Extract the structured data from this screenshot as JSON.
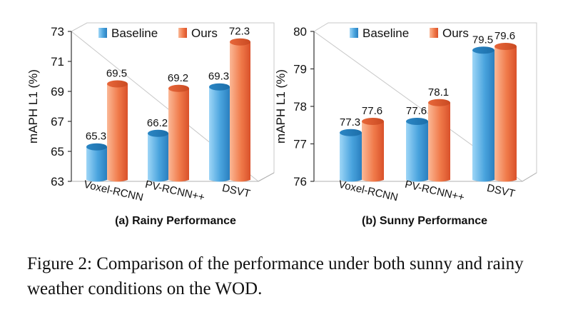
{
  "figure": {
    "caption": "Figure 2: Comparison of the performance under both sunny and rainy weather conditions on the WOD."
  },
  "colors": {
    "baseline_light": "#7fc4ef",
    "baseline_dark": "#2a7fbf",
    "ours_light": "#f7a078",
    "ours_dark": "#e2572b"
  },
  "chart_data": [
    {
      "type": "bar",
      "title": "(a) Rainy Performance",
      "xlabel": "",
      "ylabel": "mAPH L1 (%)",
      "categories": [
        "Voxel-RCNN",
        "PV-RCNN++",
        "DSVT"
      ],
      "series": [
        {
          "name": "Baseline",
          "values": [
            65.3,
            66.2,
            69.3
          ]
        },
        {
          "name": "Ours",
          "values": [
            69.5,
            69.2,
            72.3
          ]
        }
      ],
      "ylim": [
        63,
        73
      ],
      "yticks": [
        63,
        65,
        67,
        69,
        71,
        73
      ],
      "legend": "top",
      "grid": false
    },
    {
      "type": "bar",
      "title": "(b) Sunny Performance",
      "xlabel": "",
      "ylabel": "mAPH L1 (%)",
      "categories": [
        "Voxel-RCNN",
        "PV-RCNN++",
        "DSVT"
      ],
      "series": [
        {
          "name": "Baseline",
          "values": [
            77.3,
            77.6,
            79.5
          ]
        },
        {
          "name": "Ours",
          "values": [
            77.6,
            78.1,
            79.6
          ]
        }
      ],
      "ylim": [
        76,
        80
      ],
      "yticks": [
        76,
        77,
        78,
        79,
        80
      ],
      "legend": "top",
      "grid": false
    }
  ]
}
